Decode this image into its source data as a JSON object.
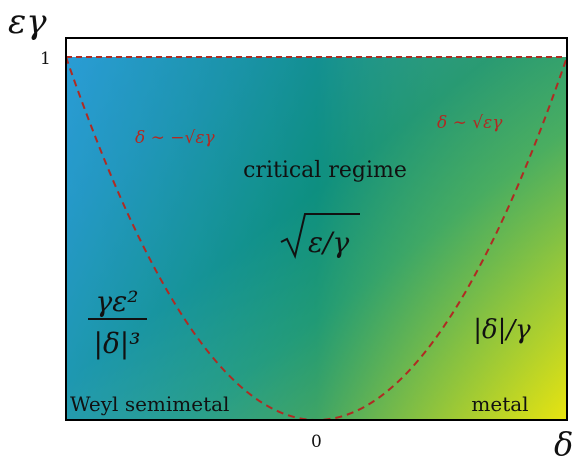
{
  "axes": {
    "y_label": "εγ",
    "x_label": "δ",
    "y_tick": "1",
    "x_tick": "0"
  },
  "regions": {
    "critical_regime": {
      "title": "critical regime",
      "formula": "ε/γ"
    },
    "weyl_semimetal": {
      "title": "Weyl semimetal",
      "numerator": "γε²",
      "denominator": "|δ|³"
    },
    "metal": {
      "title": "metal",
      "formula": "|δ|/γ"
    }
  },
  "boundaries": {
    "left_label": "δ ∼ −√εγ",
    "right_label": "δ ∼ √εγ"
  },
  "colors": {
    "gradient_left": "#2a9fd0",
    "gradient_center": "#0f9081",
    "gradient_right": "#f4e40a",
    "boundary": "#b02a22",
    "text": "#111111"
  }
}
